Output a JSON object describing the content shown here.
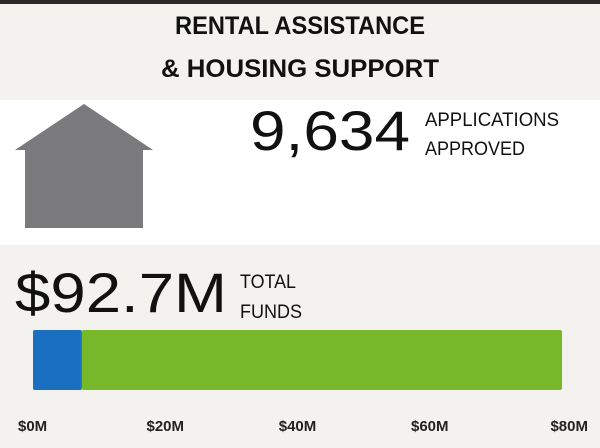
{
  "chart_data": {
    "type": "stacked_bar",
    "title": [
      "RENTAL ASSISTANCE",
      "& HOUSING SUPPORT"
    ],
    "stats": {
      "applications": {
        "value": "9,634",
        "label": [
          "APPLICATIONS",
          "APPROVED"
        ]
      },
      "funds": {
        "value": "$92.7M",
        "label": [
          "TOTAL",
          "FUNDS"
        ]
      }
    },
    "categories": [
      null
    ],
    "series": [
      {
        "color": "#1a6fc0",
        "values": [
          7.4
        ]
      },
      {
        "color": "#76b82a",
        "values": [
          72.6
        ]
      }
    ],
    "xlim": [
      0,
      80
    ],
    "xticks": [
      {
        "value": 0,
        "label": "$0M"
      },
      {
        "value": 20,
        "label": "$20M"
      },
      {
        "value": 40,
        "label": "$40M"
      },
      {
        "value": 60,
        "label": "$60M"
      },
      {
        "value": 80,
        "label": "$80M"
      }
    ]
  }
}
